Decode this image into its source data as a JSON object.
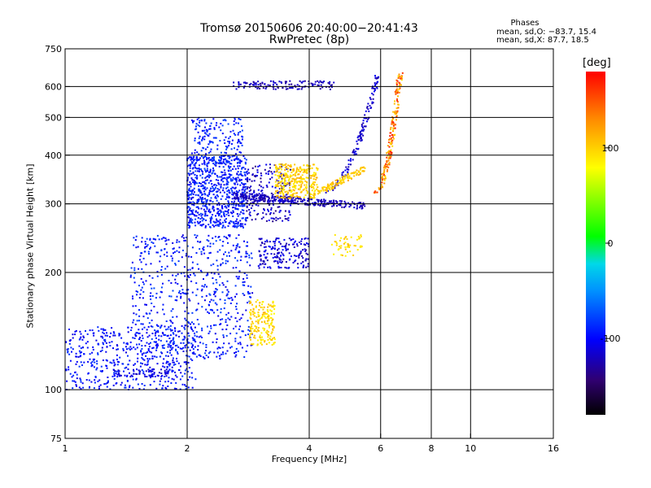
{
  "title": "Tromsø 20150606 20:40:00−20:41:43",
  "subtitle": "RwPretec (8p)",
  "phases": {
    "title": "Phases",
    "o_line": "mean, sd,O: −83.7, 15.4",
    "x_line": "mean, sd,X:  87.7, 18.5"
  },
  "colorbar": {
    "unit": "[deg]",
    "ticks": [
      {
        "value": 100,
        "label": "100"
      },
      {
        "value": 0,
        "label": "0"
      },
      {
        "value": -100,
        "label": "-100"
      }
    ],
    "range": [
      -180,
      180
    ]
  },
  "chart_data": {
    "type": "scatter",
    "title": "Tromsø 20150606 20:40:00−20:41:43",
    "subtitle": "RwPretec (8p)",
    "xlabel": "Frequency [MHz]",
    "ylabel": "Stationary phase Virtual Height [km]",
    "x_scale": "log",
    "y_scale": "log",
    "xlim": [
      1,
      16
    ],
    "ylim": [
      75,
      750
    ],
    "x_ticks": [
      {
        "value": 1,
        "label": "1"
      },
      {
        "value": 2,
        "label": "2"
      },
      {
        "value": 4,
        "label": "4"
      },
      {
        "value": 6,
        "label": "6"
      },
      {
        "value": 8,
        "label": "8"
      },
      {
        "value": 10,
        "label": "10"
      },
      {
        "value": 16,
        "label": "16"
      }
    ],
    "x_grid": [
      2,
      4,
      6,
      8,
      10
    ],
    "y_ticks": [
      {
        "value": 75,
        "label": "75"
      },
      {
        "value": 100,
        "label": "100"
      },
      {
        "value": 200,
        "label": "200"
      },
      {
        "value": 300,
        "label": "300"
      },
      {
        "value": 400,
        "label": "400"
      },
      {
        "value": 500,
        "label": "500"
      },
      {
        "value": 600,
        "label": "600"
      },
      {
        "value": 750,
        "label": "750"
      }
    ],
    "y_grid": [
      100,
      200,
      300,
      400,
      500,
      600
    ],
    "grid": true,
    "color_scale": "phase [deg], -180 (black) → -100 (blue) → 0 (green) → 100 (yellow) → 180 (red)",
    "clusters": [
      {
        "name": "o-low-diffuse",
        "n": 520,
        "f": [
          1.0,
          2.1
        ],
        "h": [
          100,
          145
        ],
        "phase": [
          -110,
          -80
        ]
      },
      {
        "name": "o-low-band",
        "n": 60,
        "f": [
          1.3,
          1.8
        ],
        "h": [
          108,
          113
        ],
        "phase": [
          -120,
          -100
        ]
      },
      {
        "name": "o-mid-diffuse",
        "n": 650,
        "f": [
          1.45,
          2.9
        ],
        "h": [
          120,
          250
        ],
        "phase": [
          -110,
          -75
        ]
      },
      {
        "name": "o-F-dense",
        "n": 750,
        "f": [
          2.0,
          2.8
        ],
        "h": [
          260,
          400
        ],
        "phase": [
          -110,
          -75
        ]
      },
      {
        "name": "o-F-upper",
        "n": 180,
        "f": [
          2.05,
          2.75
        ],
        "h": [
          380,
          500
        ],
        "phase": [
          -105,
          -75
        ]
      },
      {
        "name": "o-Ftrace",
        "n": 320,
        "kind": "trace",
        "f": [
          2.6,
          5.5
        ],
        "h": [
          315,
          296
        ],
        "phase": [
          -130,
          -110
        ]
      },
      {
        "name": "o-top",
        "n": 120,
        "f": [
          2.6,
          4.6
        ],
        "h": [
          590,
          620
        ],
        "phase": [
          -135,
          -110
        ]
      },
      {
        "name": "o-cusp",
        "n": 130,
        "kind": "curve",
        "f": [
          4.3,
          5.9
        ],
        "h": [
          320,
          640
        ],
        "phase": [
          -130,
          -100
        ]
      },
      {
        "name": "o-mid-right",
        "n": 180,
        "f": [
          3.0,
          4.0
        ],
        "h": [
          205,
          245
        ],
        "phase": [
          -130,
          -95
        ]
      },
      {
        "name": "o-bits",
        "n": 200,
        "f": [
          2.8,
          3.6
        ],
        "h": [
          270,
          380
        ],
        "phase": [
          -140,
          -100
        ]
      },
      {
        "name": "x-mid",
        "n": 320,
        "f": [
          3.3,
          4.2
        ],
        "h": [
          310,
          380
        ],
        "phase": [
          80,
          120
        ]
      },
      {
        "name": "x-trace",
        "n": 120,
        "kind": "trace",
        "f": [
          4.2,
          5.5
        ],
        "h": [
          320,
          370
        ],
        "phase": [
          85,
          120
        ]
      },
      {
        "name": "x-cusp",
        "n": 180,
        "kind": "curve",
        "f": [
          5.8,
          6.7
        ],
        "h": [
          320,
          650
        ],
        "phase": [
          90,
          175
        ]
      },
      {
        "name": "x-low",
        "n": 180,
        "f": [
          2.85,
          3.3
        ],
        "h": [
          130,
          170
        ],
        "phase": [
          80,
          115
        ]
      },
      {
        "name": "x-mid-small",
        "n": 50,
        "f": [
          4.5,
          5.4
        ],
        "h": [
          220,
          250
        ],
        "phase": [
          80,
          110
        ]
      }
    ]
  }
}
